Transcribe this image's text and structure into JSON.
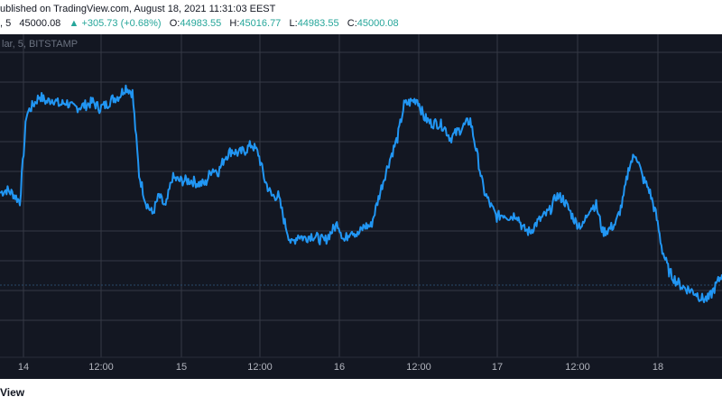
{
  "header": {
    "published": "ublished on TradingView.com, August 18, 2021 11:31:03 EEST",
    "symbol_prefix": ", 5",
    "last": "45000.08",
    "change_arrow": "▲",
    "change": "+305.73 (+0.68%)",
    "o_label": "O:",
    "o_value": "44983.55",
    "h_label": "H:",
    "h_value": "45016.77",
    "l_label": "L:",
    "l_value": "44983.55",
    "c_label": "C:",
    "c_value": "45000.08"
  },
  "chart_data": {
    "type": "line",
    "symbol_label": "lar, 5, BITSTAMP",
    "x_ticks": [
      "14",
      "12:00",
      "15",
      "12:00",
      "16",
      "12:00",
      "17",
      "12:00",
      "18"
    ],
    "line_color": "#2196f3",
    "background": "#131722",
    "grid": true,
    "series": [
      {
        "values": [
          46300,
          46350,
          46280,
          46150,
          47600,
          47750,
          47900,
          47800,
          47850,
          47750,
          47800,
          47700,
          47720,
          47750,
          47800,
          47700,
          47750,
          47850,
          47900,
          48050,
          47950,
          46600,
          46150,
          45950,
          46250,
          46050,
          46550,
          46500,
          46500,
          46500,
          46450,
          46450,
          46700,
          46650,
          46900,
          47000,
          46950,
          47000,
          47100,
          46950,
          46500,
          46250,
          46250,
          45800,
          45450,
          45600,
          45550,
          45600,
          45550,
          45500,
          45650,
          45800,
          45500,
          45700,
          45600,
          45750,
          45750,
          46150,
          46550,
          46900,
          47200,
          47750,
          47800,
          47850,
          47550,
          47450,
          47450,
          47400,
          47200,
          47300,
          47400,
          47500,
          46950,
          46350,
          46100,
          45900,
          45950,
          45900,
          45950,
          45700,
          45650,
          45800,
          45900,
          46000,
          46250,
          46200,
          46000,
          45800,
          45750,
          46050,
          46100,
          45650,
          45700,
          45800,
          46150,
          46750,
          46950,
          46550,
          46350,
          45950,
          45350,
          45000,
          44850,
          44750,
          44700,
          44650,
          44550,
          44550,
          44750,
          44950
        ]
      }
    ],
    "ylim": [
      44000,
      48500
    ],
    "x_count": 110
  },
  "footer": {
    "brand": "View"
  }
}
